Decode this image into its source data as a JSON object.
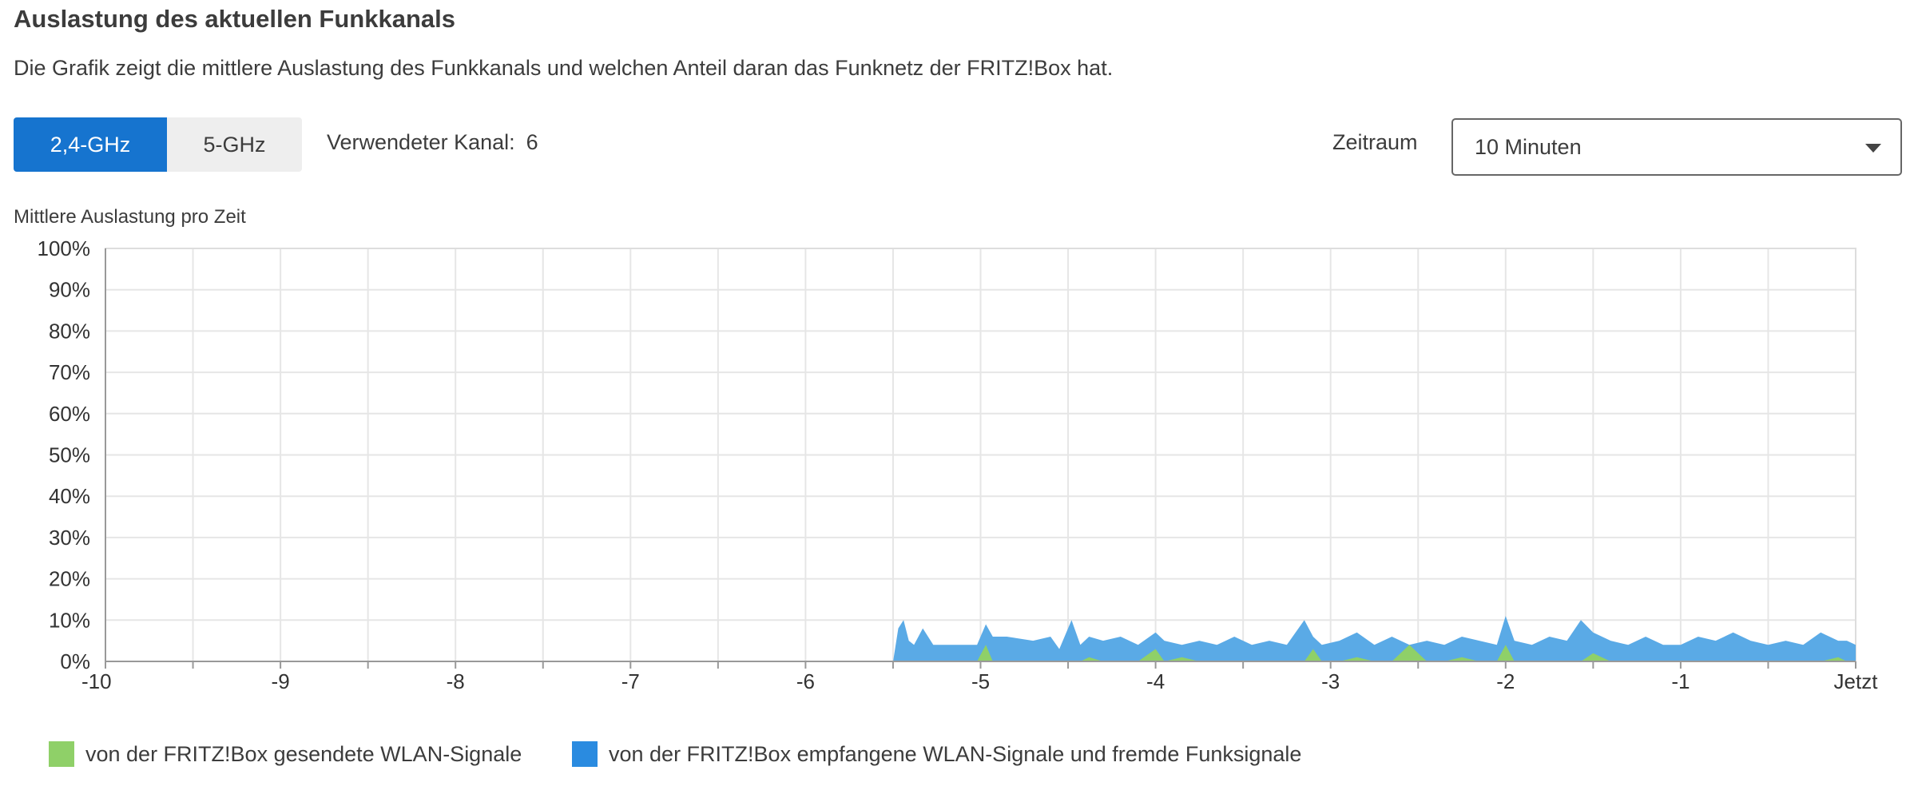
{
  "header": {
    "title": "Auslastung des aktuellen Funkkanals",
    "description": "Die Grafik zeigt die mittlere Auslastung des Funkkanals und welchen Anteil daran das Funknetz der FRITZ!Box hat."
  },
  "controls": {
    "bands": [
      "2,4-GHz",
      "5-GHz"
    ],
    "active_band": "2,4-GHz",
    "channel_label": "Verwendeter Kanal:",
    "channel_value": "6",
    "range_label": "Zeitraum",
    "range_value": "10 Minuten"
  },
  "colors": {
    "accent": "#1674cf",
    "received": "#5aaae6",
    "sent": "#8fd068",
    "grid": "#e6e6e6"
  },
  "chart_data": {
    "type": "area",
    "title": "Mittlere Auslastung pro Zeit",
    "xlabel": "",
    "ylabel": "",
    "x_range": [
      -10,
      0
    ],
    "y_range": [
      0,
      100
    ],
    "x_ticks": [
      "-10",
      "-9",
      "-8",
      "-7",
      "-6",
      "-5",
      "-4",
      "-3",
      "-2",
      "-1",
      "Jetzt"
    ],
    "y_ticks": [
      "0%",
      "10%",
      "20%",
      "30%",
      "40%",
      "50%",
      "60%",
      "70%",
      "80%",
      "90%",
      "100%"
    ],
    "x": [
      -5.5,
      -5.47,
      -5.44,
      -5.41,
      -5.38,
      -5.33,
      -5.27,
      -5.2,
      -5.1,
      -5.02,
      -4.97,
      -4.93,
      -4.85,
      -4.7,
      -4.6,
      -4.55,
      -4.48,
      -4.43,
      -4.38,
      -4.3,
      -4.2,
      -4.1,
      -4.0,
      -3.95,
      -3.85,
      -3.75,
      -3.65,
      -3.55,
      -3.45,
      -3.35,
      -3.25,
      -3.15,
      -3.1,
      -3.05,
      -2.95,
      -2.85,
      -2.75,
      -2.65,
      -2.55,
      -2.45,
      -2.35,
      -2.25,
      -2.15,
      -2.05,
      -2.0,
      -1.95,
      -1.85,
      -1.75,
      -1.65,
      -1.57,
      -1.5,
      -1.4,
      -1.3,
      -1.2,
      -1.1,
      -1.0,
      -0.9,
      -0.8,
      -0.7,
      -0.6,
      -0.5,
      -0.4,
      -0.3,
      -0.2,
      -0.1,
      -0.05,
      0.0
    ],
    "series": [
      {
        "name": "von der FRITZ!Box empfangene WLAN-Signale und fremde Funksignale",
        "values": [
          0,
          8,
          10,
          5,
          4,
          8,
          4,
          4,
          4,
          4,
          9,
          6,
          6,
          5,
          6,
          3,
          10,
          4,
          6,
          5,
          6,
          4,
          7,
          5,
          4,
          5,
          4,
          6,
          4,
          5,
          4,
          10,
          6,
          4,
          5,
          7,
          4,
          6,
          4,
          5,
          4,
          6,
          5,
          4,
          11,
          5,
          4,
          6,
          5,
          10,
          7,
          5,
          4,
          6,
          4,
          4,
          6,
          5,
          7,
          5,
          4,
          5,
          4,
          7,
          5,
          5,
          4
        ]
      },
      {
        "name": "von der FRITZ!Box gesendete WLAN-Signale",
        "values": [
          0,
          0,
          0,
          0,
          0,
          0,
          0,
          0,
          0,
          0,
          4,
          0,
          0,
          0,
          0,
          0,
          0,
          0,
          1,
          0,
          0,
          0,
          3,
          0,
          1,
          0,
          0,
          0,
          0,
          0,
          0,
          0,
          3,
          0,
          0,
          1,
          0,
          0,
          4,
          0,
          0,
          1,
          0,
          0,
          4,
          0,
          0,
          0,
          0,
          0,
          2,
          0,
          0,
          0,
          0,
          0,
          0,
          0,
          0,
          0,
          0,
          0,
          0,
          0,
          1,
          0,
          0
        ]
      }
    ]
  },
  "legend": {
    "sent": "von der FRITZ!Box gesendete WLAN-Signale",
    "received": "von der FRITZ!Box empfangene WLAN-Signale und fremde Funksignale"
  }
}
